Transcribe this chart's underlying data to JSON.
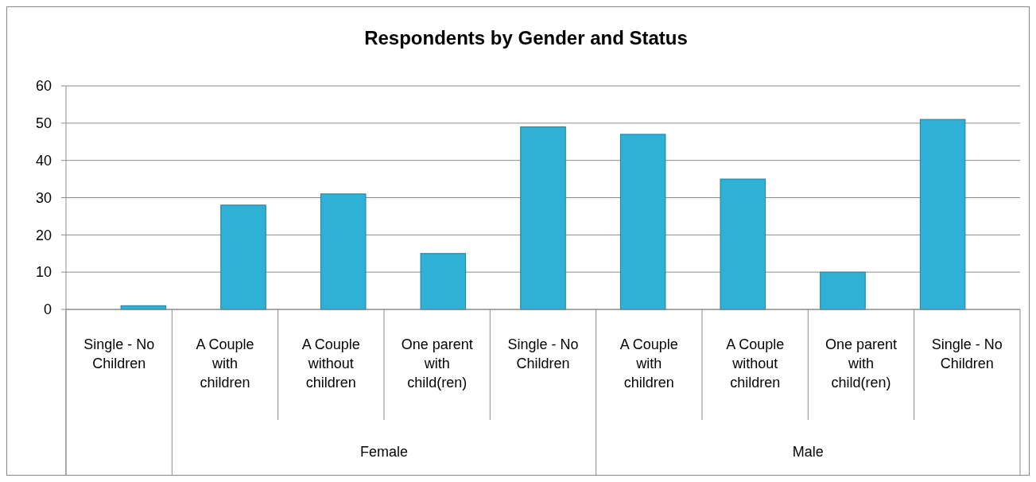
{
  "chart_data": {
    "type": "bar",
    "title": "Respondents by Gender and Status",
    "categories": [
      "Single - No\nChildren",
      "A Couple\nwith\nchildren",
      "A Couple\nwithout\nchildren",
      "One parent\nwith\nchild(ren)",
      "Single - No\nChildren",
      "A Couple\nwith\nchildren",
      "A Couple\nwithout\nchildren",
      "One parent\nwith\nchild(ren)",
      "Single - No\nChildren"
    ],
    "values": [
      1,
      28,
      31,
      15,
      49,
      47,
      35,
      10,
      51
    ],
    "color": "#2fb0d6",
    "ylim": [
      0,
      60
    ],
    "yticks": [
      0,
      10,
      20,
      30,
      40,
      50,
      60
    ],
    "grid": "y",
    "annotations": [
      "Female",
      "Male"
    ]
  }
}
